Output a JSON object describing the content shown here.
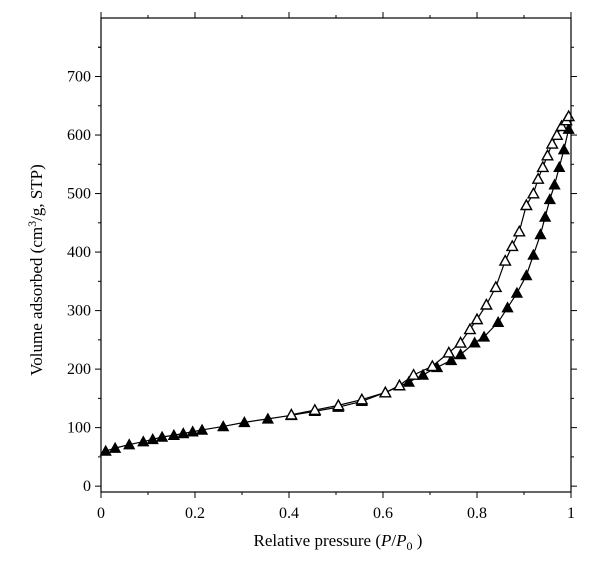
{
  "chart_data": {
    "type": "scatter",
    "title": "",
    "xlabel": {
      "prefix": "Relative pressure (",
      "var1": "P",
      "slash": "/",
      "var2": "P",
      "sub": "0",
      "suffix": " )"
    },
    "ylabel": {
      "prefix": "Volume adsorbed (cm",
      "sup": "3",
      "suffix": "/g, STP)"
    },
    "xlim": [
      0,
      1
    ],
    "ylim": [
      -10,
      800
    ],
    "x_ticks": [
      0,
      0.2,
      0.4,
      0.6,
      0.8,
      1
    ],
    "x_tick_labels": [
      "0",
      "0.2",
      "0.4",
      "0.6",
      "0.8",
      "1"
    ],
    "y_ticks": [
      0,
      100,
      200,
      300,
      400,
      500,
      600,
      700
    ],
    "y_tick_labels": [
      "0",
      "100",
      "200",
      "300",
      "400",
      "500",
      "600",
      "700"
    ],
    "grid": false,
    "series": [
      {
        "marker": "filled-triangle",
        "color": "#000000",
        "x": [
          0.01,
          0.03,
          0.06,
          0.09,
          0.11,
          0.13,
          0.155,
          0.175,
          0.195,
          0.215,
          0.26,
          0.305,
          0.355,
          0.405,
          0.455,
          0.505,
          0.555,
          0.605,
          0.655,
          0.685,
          0.715,
          0.745,
          0.765,
          0.795,
          0.815,
          0.845,
          0.865,
          0.885,
          0.905,
          0.92,
          0.935,
          0.945,
          0.955,
          0.965,
          0.975,
          0.985,
          0.995
        ],
        "y": [
          60,
          65,
          71,
          76,
          80,
          84,
          87,
          90,
          93,
          96,
          102,
          109,
          115,
          121,
          128,
          135,
          145,
          160,
          178,
          190,
          203,
          215,
          225,
          245,
          255,
          280,
          305,
          330,
          360,
          395,
          430,
          460,
          490,
          515,
          545,
          575,
          610
        ]
      },
      {
        "marker": "open-triangle",
        "color": "#000000",
        "x": [
          0.405,
          0.455,
          0.505,
          0.555,
          0.605,
          0.635,
          0.665,
          0.705,
          0.74,
          0.765,
          0.785,
          0.8,
          0.82,
          0.84,
          0.86,
          0.875,
          0.89,
          0.905,
          0.92,
          0.93,
          0.94,
          0.95,
          0.96,
          0.97,
          0.98,
          0.99,
          0.995
        ],
        "y": [
          122,
          130,
          138,
          148,
          160,
          172,
          190,
          205,
          228,
          245,
          268,
          285,
          310,
          340,
          385,
          410,
          435,
          480,
          500,
          525,
          545,
          565,
          585,
          600,
          615,
          625,
          632
        ]
      }
    ]
  }
}
